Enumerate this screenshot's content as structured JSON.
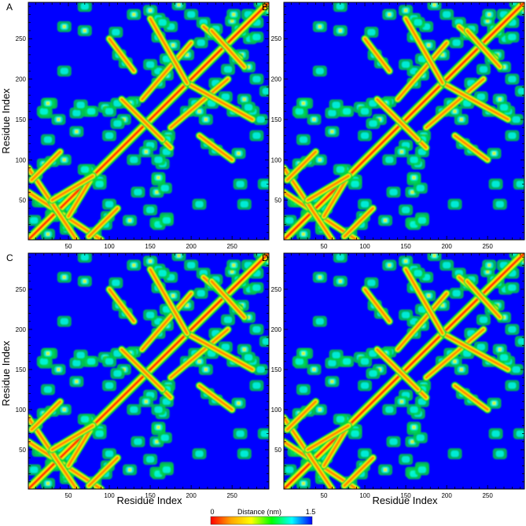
{
  "chart_data": [
    {
      "type": "heatmap",
      "panel": "A",
      "xlabel": "",
      "ylabel": "Residue Index",
      "xlim": [
        1,
        295
      ],
      "ylim": [
        1,
        295
      ],
      "x_ticks": [
        "50",
        "100",
        "150",
        "200",
        "250"
      ],
      "y_ticks": [
        "50",
        "100",
        "150",
        "200",
        "250"
      ]
    },
    {
      "type": "heatmap",
      "panel": "B",
      "xlabel": "",
      "ylabel": "",
      "xlim": [
        1,
        295
      ],
      "ylim": [
        1,
        295
      ],
      "x_ticks": [
        "50",
        "100",
        "150",
        "200",
        "250"
      ],
      "y_ticks": [
        "50",
        "100",
        "150",
        "200",
        "250"
      ]
    },
    {
      "type": "heatmap",
      "panel": "C",
      "xlabel": "Residue Index",
      "ylabel": "Residue Index",
      "xlim": [
        1,
        295
      ],
      "ylim": [
        1,
        295
      ],
      "x_ticks": [
        "50",
        "100",
        "150",
        "200",
        "250"
      ],
      "y_ticks": [
        "50",
        "100",
        "150",
        "200",
        "250"
      ]
    },
    {
      "type": "heatmap",
      "panel": "D",
      "xlabel": "Residue Index",
      "ylabel": "",
      "xlim": [
        1,
        295
      ],
      "ylim": [
        1,
        295
      ],
      "x_ticks": [
        "50",
        "100",
        "150",
        "200",
        "250"
      ],
      "y_ticks": [
        "50",
        "100",
        "150",
        "200",
        "250"
      ]
    }
  ],
  "contact_segments": [
    [
      1,
      295,
      1,
      295
    ],
    [
      1,
      90,
      60,
      1
    ],
    [
      75,
      110,
      5,
      40
    ],
    [
      125,
      175,
      165,
      115
    ],
    [
      140,
      200,
      175,
      245
    ],
    [
      195,
      275,
      195,
      150
    ],
    [
      215,
      260,
      265,
      225
    ],
    [
      50,
      80,
      30,
      80
    ],
    [
      100,
      130,
      250,
      210
    ]
  ],
  "contact_patches": [
    [
      14,
      48
    ],
    [
      30,
      32
    ],
    [
      48,
      18
    ],
    [
      25,
      8
    ],
    [
      40,
      52
    ],
    [
      80,
      78
    ],
    [
      75,
      88
    ],
    [
      88,
      70
    ],
    [
      10,
      82
    ],
    [
      20,
      95
    ],
    [
      28,
      170
    ],
    [
      22,
      158
    ],
    [
      38,
      150
    ],
    [
      75,
      160
    ],
    [
      60,
      158
    ],
    [
      95,
      165
    ],
    [
      110,
      170
    ],
    [
      130,
      172
    ],
    [
      118,
      150
    ],
    [
      160,
      195
    ],
    [
      175,
      222
    ],
    [
      195,
      230
    ],
    [
      212,
      245
    ],
    [
      230,
      262
    ],
    [
      250,
      272
    ],
    [
      270,
      280
    ],
    [
      285,
      295
    ],
    [
      150,
      285
    ],
    [
      160,
      275
    ],
    [
      175,
      265
    ],
    [
      185,
      292
    ],
    [
      200,
      280
    ],
    [
      215,
      270
    ],
    [
      225,
      255
    ],
    [
      262,
      258
    ],
    [
      280,
      252
    ],
    [
      145,
      110
    ],
    [
      160,
      100
    ],
    [
      170,
      125
    ],
    [
      160,
      78
    ],
    [
      168,
      65
    ],
    [
      135,
      60
    ],
    [
      210,
      160
    ],
    [
      225,
      170
    ],
    [
      242,
      178
    ],
    [
      252,
      160
    ],
    [
      270,
      165
    ],
    [
      280,
      130
    ],
    [
      258,
      108
    ],
    [
      290,
      70
    ],
    [
      260,
      70
    ],
    [
      112,
      230
    ],
    [
      120,
      220
    ],
    [
      150,
      218
    ],
    [
      170,
      205
    ],
    [
      130,
      100
    ],
    [
      100,
      45
    ],
    [
      98,
      30
    ],
    [
      160,
      20
    ],
    [
      170,
      25
    ],
    [
      125,
      25
    ],
    [
      210,
      45
    ],
    [
      265,
      45
    ]
  ],
  "colorbar": {
    "label": "Distance (nm)",
    "min_label": "0",
    "max_label": "1.5",
    "min": 0,
    "max": 1.5,
    "colors": [
      "#ff0000",
      "#ffa500",
      "#ffff00",
      "#00ff00",
      "#00ffff",
      "#0000ff"
    ]
  },
  "colors": {
    "background": "#0000ff",
    "diagonal": "#ff0000",
    "frame": "#000000"
  }
}
